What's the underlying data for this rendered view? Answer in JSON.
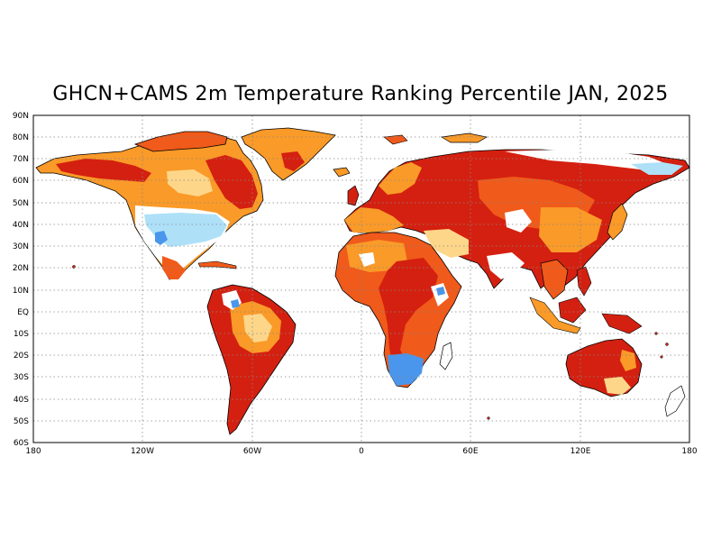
{
  "title": "GHCN+CAMS 2m Temperature Ranking Percentile JAN, 2025",
  "lat_ticks": [
    "90N",
    "80N",
    "70N",
    "60N",
    "50N",
    "40N",
    "30N",
    "20N",
    "10N",
    "EQ",
    "10S",
    "20S",
    "30S",
    "40S",
    "50S",
    "60S"
  ],
  "lon_ticks": [
    "180",
    "120W",
    "60W",
    "0",
    "60E",
    "120E",
    "180"
  ],
  "colors": {
    "warmest": "#d42010",
    "much_warmer": "#f05a1a",
    "warmer": "#fa9a28",
    "slightly_warmer": "#fdd68a",
    "near_normal": "#ffffff",
    "cooler": "#aee0f8",
    "much_cooler": "#4a96ec",
    "coastline": "#000000",
    "grid": "#888888"
  },
  "map": {
    "projection": "equirectangular",
    "lon_range": [
      -180,
      180
    ],
    "lat_range": [
      -60,
      90
    ],
    "grid": "dotted, 10° latitude"
  }
}
